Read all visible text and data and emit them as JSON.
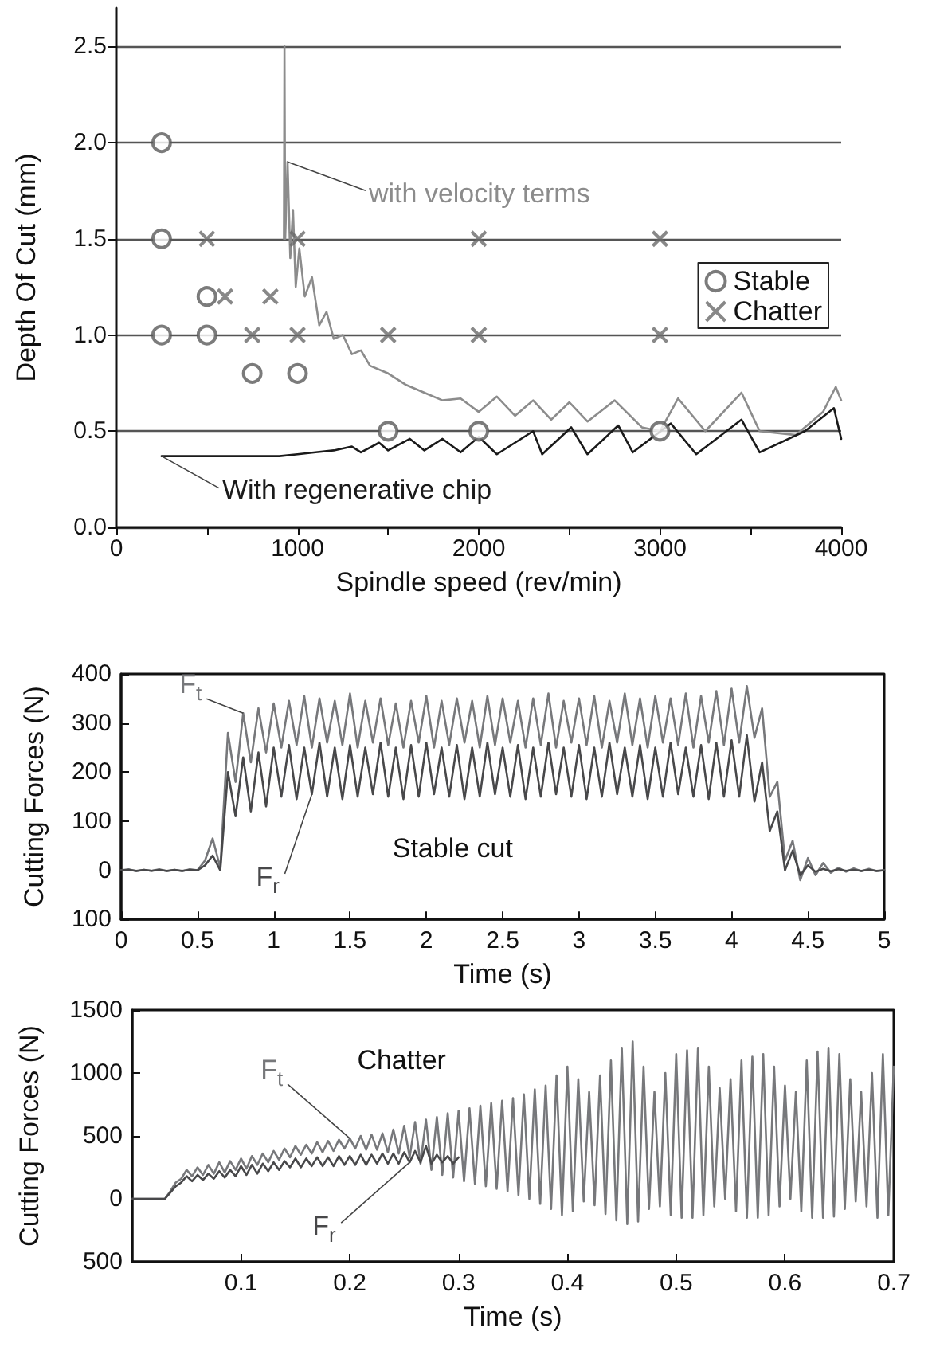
{
  "chart_data": [
    {
      "type": "line",
      "xlabel": "Spindle speed (rev/min)",
      "ylabel": "Depth Of Cut (mm)",
      "xlim": [
        0,
        4000
      ],
      "xticks": [
        0,
        {
          "value": 500,
          "label": null
        },
        1000,
        {
          "value": 1500,
          "label": null
        },
        2000,
        {
          "value": 2500,
          "label": null
        },
        3000,
        {
          "value": 3500,
          "label": null
        },
        4000
      ],
      "ylim": [
        0,
        2.7
      ],
      "yticks": [
        {
          "value": 0,
          "label": "0.0"
        },
        0.5,
        {
          "value": 1,
          "label": "1.0"
        },
        1.5,
        {
          "value": 2,
          "label": "2.0"
        },
        2.5
      ],
      "grid": "y",
      "legend": "right",
      "series": [
        {
          "name": "with velocity terms",
          "type": "line",
          "color": "#8c8c8c",
          "x": [
            925,
            928,
            932,
            945,
            960,
            975,
            990,
            1010,
            1040,
            1080,
            1120,
            1160,
            1200,
            1250,
            1300,
            1350,
            1400,
            1500,
            1600,
            1700,
            1800,
            1900,
            2000,
            2100,
            2200,
            2300,
            2400,
            2500,
            2600,
            2750,
            2900,
            3000,
            3100,
            3250,
            3450,
            3550,
            3750,
            3900,
            3970,
            4000
          ],
          "values": [
            1.5,
            2.5,
            1.5,
            1.9,
            1.4,
            1.65,
            1.25,
            1.45,
            1.2,
            1.3,
            1.05,
            1.12,
            0.98,
            1.0,
            0.9,
            0.92,
            0.84,
            0.8,
            0.74,
            0.7,
            0.66,
            0.67,
            0.6,
            0.68,
            0.58,
            0.66,
            0.56,
            0.65,
            0.55,
            0.66,
            0.52,
            0.5,
            0.67,
            0.5,
            0.7,
            0.5,
            0.48,
            0.6,
            0.73,
            0.66
          ]
        },
        {
          "name": "With regenerative chip",
          "type": "line",
          "color": "#1a1a1a",
          "x": [
            250,
            900,
            1000,
            1100,
            1200,
            1300,
            1350,
            1450,
            1500,
            1620,
            1700,
            1800,
            1900,
            2000,
            2100,
            2300,
            2350,
            2510,
            2600,
            2770,
            2850,
            3060,
            3200,
            3450,
            3550,
            3800,
            3960,
            4000
          ],
          "values": [
            0.37,
            0.37,
            0.38,
            0.39,
            0.4,
            0.42,
            0.39,
            0.44,
            0.4,
            0.46,
            0.4,
            0.46,
            0.39,
            0.47,
            0.38,
            0.5,
            0.38,
            0.52,
            0.38,
            0.53,
            0.39,
            0.54,
            0.38,
            0.56,
            0.39,
            0.5,
            0.62,
            0.46
          ]
        },
        {
          "name": "Stable",
          "type": "scatter",
          "marker": "circle",
          "color": "#5a5a5a",
          "x": [
            250,
            250,
            250,
            500,
            500,
            750,
            1000,
            1500,
            2000,
            3000
          ],
          "values": [
            2.0,
            1.5,
            1.0,
            1.2,
            1.0,
            0.8,
            0.8,
            0.5,
            0.5,
            0.5
          ]
        },
        {
          "name": "Chatter",
          "type": "scatter",
          "marker": "cross",
          "color": "#6a6a6a",
          "x": [
            500,
            600,
            750,
            850,
            1000,
            1000,
            1500,
            2000,
            2000,
            3000,
            3000
          ],
          "values": [
            1.5,
            1.2,
            1.0,
            1.2,
            1.5,
            1.0,
            1.0,
            1.5,
            1.0,
            1.5,
            1.0
          ]
        }
      ]
    },
    {
      "type": "line",
      "xlabel": "Time (s)",
      "ylabel": "Cutting Forces (N)",
      "annotations": [
        "Stable cut"
      ],
      "xlim": [
        0,
        5
      ],
      "xticks": [
        0,
        0.5,
        1,
        1.5,
        2,
        2.5,
        3,
        3.5,
        4,
        4.5,
        5
      ],
      "ylim": [
        -100,
        400
      ],
      "yticks": [
        {
          "value": -100,
          "label": "100"
        },
        0,
        100,
        200,
        300,
        400
      ],
      "series": [
        {
          "name": "F$_{t}$",
          "color": "#77787b",
          "x": [
            0,
            0.05,
            0.1,
            0.15,
            0.2,
            0.25,
            0.3,
            0.35,
            0.4,
            0.45,
            0.5,
            0.55,
            0.6,
            0.65,
            0.7,
            0.75,
            0.8,
            0.85,
            0.9,
            0.95,
            1,
            1.05,
            1.1,
            1.15,
            1.2,
            1.25,
            1.3,
            1.35,
            1.4,
            1.45,
            1.5,
            1.55,
            1.6,
            1.65,
            1.7,
            1.75,
            1.8,
            1.85,
            1.9,
            1.95,
            2,
            2.05,
            2.1,
            2.15,
            2.2,
            2.25,
            2.3,
            2.35,
            2.4,
            2.45,
            2.5,
            2.55,
            2.6,
            2.65,
            2.7,
            2.75,
            2.8,
            2.85,
            2.9,
            2.95,
            3,
            3.05,
            3.1,
            3.15,
            3.2,
            3.25,
            3.3,
            3.35,
            3.4,
            3.45,
            3.5,
            3.55,
            3.6,
            3.65,
            3.7,
            3.75,
            3.8,
            3.85,
            3.9,
            3.95,
            4,
            4.05,
            4.1,
            4.15,
            4.2,
            4.25,
            4.3,
            4.35,
            4.4,
            4.45,
            4.5,
            4.55,
            4.6,
            4.65,
            4.7,
            4.75,
            4.8,
            4.85,
            4.9,
            4.95,
            5
          ],
          "values": [
            0,
            2,
            -2,
            1,
            -1,
            2,
            -2,
            1,
            -2,
            2,
            0,
            20,
            65,
            5,
            280,
            180,
            320,
            220,
            330,
            240,
            340,
            250,
            345,
            255,
            355,
            250,
            350,
            260,
            345,
            255,
            360,
            250,
            345,
            260,
            350,
            255,
            340,
            250,
            345,
            260,
            355,
            250,
            345,
            255,
            350,
            260,
            345,
            250,
            355,
            255,
            350,
            260,
            345,
            250,
            350,
            255,
            360,
            250,
            345,
            260,
            350,
            255,
            355,
            250,
            345,
            260,
            360,
            255,
            350,
            250,
            355,
            260,
            350,
            255,
            360,
            250,
            355,
            260,
            365,
            255,
            370,
            260,
            375,
            270,
            330,
            150,
            180,
            20,
            60,
            -20,
            25,
            -10,
            15,
            -5,
            5,
            -3,
            4,
            -2,
            3,
            -2,
            0
          ]
        },
        {
          "name": "F$_{r}$",
          "color": "#48484a",
          "x": [
            0,
            0.05,
            0.1,
            0.15,
            0.2,
            0.25,
            0.3,
            0.35,
            0.4,
            0.45,
            0.5,
            0.55,
            0.6,
            0.65,
            0.7,
            0.75,
            0.8,
            0.85,
            0.9,
            0.95,
            1,
            1.05,
            1.1,
            1.15,
            1.2,
            1.25,
            1.3,
            1.35,
            1.4,
            1.45,
            1.5,
            1.55,
            1.6,
            1.65,
            1.7,
            1.75,
            1.8,
            1.85,
            1.9,
            1.95,
            2,
            2.05,
            2.1,
            2.15,
            2.2,
            2.25,
            2.3,
            2.35,
            2.4,
            2.45,
            2.5,
            2.55,
            2.6,
            2.65,
            2.7,
            2.75,
            2.8,
            2.85,
            2.9,
            2.95,
            3,
            3.05,
            3.1,
            3.15,
            3.2,
            3.25,
            3.3,
            3.35,
            3.4,
            3.45,
            3.5,
            3.55,
            3.6,
            3.65,
            3.7,
            3.75,
            3.8,
            3.85,
            3.9,
            3.95,
            4,
            4.05,
            4.1,
            4.15,
            4.2,
            4.25,
            4.3,
            4.35,
            4.4,
            4.45,
            4.5,
            4.55,
            4.6,
            4.65,
            4.7,
            4.75,
            4.8,
            4.85,
            4.9,
            4.95,
            5
          ],
          "values": [
            0,
            1,
            -1,
            1,
            -1,
            1,
            -1,
            1,
            -1,
            1,
            0,
            10,
            30,
            0,
            200,
            110,
            230,
            120,
            240,
            130,
            250,
            150,
            255,
            145,
            250,
            155,
            260,
            150,
            250,
            145,
            255,
            150,
            250,
            155,
            260,
            150,
            250,
            145,
            255,
            150,
            260,
            155,
            250,
            150,
            255,
            145,
            250,
            150,
            260,
            155,
            250,
            150,
            255,
            145,
            250,
            150,
            260,
            155,
            250,
            150,
            255,
            145,
            250,
            150,
            260,
            155,
            250,
            150,
            255,
            145,
            250,
            150,
            260,
            155,
            250,
            150,
            255,
            145,
            260,
            150,
            265,
            150,
            275,
            140,
            220,
            80,
            120,
            0,
            40,
            -10,
            10,
            -3,
            3,
            -2,
            2,
            -1,
            1,
            -1,
            1,
            -1,
            0
          ]
        }
      ]
    },
    {
      "type": "line",
      "xlabel": "Time (s)",
      "ylabel": "Cutting Forces (N)",
      "annotations": [
        "Chatter"
      ],
      "xlim": [
        0,
        0.7
      ],
      "xticks": [
        0.1,
        0.2,
        0.3,
        0.4,
        0.5,
        0.6,
        0.7
      ],
      "ylim": [
        -500,
        1500
      ],
      "yticks": [
        {
          "value": -500,
          "label": "500"
        },
        0,
        500,
        1000,
        1500
      ],
      "series": [
        {
          "name": "F$_{t}$",
          "color": "#77787b",
          "x": [
            0,
            0.005,
            0.01,
            0.015,
            0.02,
            0.025,
            0.03,
            0.035,
            0.04,
            0.045,
            0.05,
            0.055,
            0.06,
            0.065,
            0.07,
            0.075,
            0.08,
            0.085,
            0.09,
            0.095,
            0.1,
            0.105,
            0.11,
            0.115,
            0.12,
            0.125,
            0.13,
            0.135,
            0.14,
            0.145,
            0.15,
            0.155,
            0.16,
            0.165,
            0.17,
            0.175,
            0.18,
            0.185,
            0.19,
            0.195,
            0.2,
            0.205,
            0.21,
            0.215,
            0.22,
            0.225,
            0.23,
            0.235,
            0.24,
            0.245,
            0.25,
            0.255,
            0.26,
            0.265,
            0.27,
            0.275,
            0.28,
            0.285,
            0.29,
            0.295,
            0.3,
            0.305,
            0.31,
            0.315,
            0.32,
            0.325,
            0.33,
            0.335,
            0.34,
            0.345,
            0.35,
            0.355,
            0.36,
            0.365,
            0.37,
            0.375,
            0.38,
            0.385,
            0.39,
            0.395,
            0.4,
            0.405,
            0.41,
            0.415,
            0.42,
            0.425,
            0.43,
            0.435,
            0.44,
            0.445,
            0.45,
            0.455,
            0.46,
            0.465,
            0.47,
            0.475,
            0.48,
            0.485,
            0.49,
            0.495,
            0.5,
            0.505,
            0.51,
            0.515,
            0.52,
            0.525,
            0.53,
            0.535,
            0.54,
            0.545,
            0.55,
            0.555,
            0.56,
            0.565,
            0.57,
            0.575,
            0.58,
            0.585,
            0.59,
            0.595,
            0.6,
            0.605,
            0.61,
            0.615,
            0.62,
            0.625,
            0.63,
            0.635,
            0.64,
            0.645,
            0.65,
            0.655,
            0.66,
            0.665,
            0.67,
            0.675,
            0.68,
            0.685,
            0.69,
            0.695,
            0.7
          ],
          "values": [
            0,
            0,
            0,
            0,
            0,
            0,
            0,
            60,
            130,
            160,
            230,
            180,
            250,
            190,
            270,
            200,
            290,
            210,
            300,
            230,
            320,
            240,
            340,
            270,
            360,
            290,
            380,
            310,
            400,
            330,
            420,
            350,
            430,
            360,
            450,
            370,
            460,
            380,
            470,
            400,
            480,
            400,
            500,
            390,
            510,
            390,
            520,
            370,
            550,
            360,
            580,
            330,
            610,
            280,
            630,
            230,
            650,
            190,
            680,
            170,
            700,
            140,
            720,
            120,
            740,
            100,
            760,
            80,
            780,
            60,
            800,
            30,
            830,
            0,
            870,
            -40,
            900,
            -80,
            980,
            -130,
            1050,
            -100,
            950,
            -20,
            850,
            -50,
            980,
            -120,
            1100,
            -170,
            1200,
            -200,
            1250,
            -180,
            1050,
            -80,
            850,
            -60,
            1000,
            -130,
            1150,
            -150,
            1180,
            -150,
            1200,
            -130,
            1050,
            -60,
            880,
            0,
            950,
            -100,
            1100,
            -150,
            1130,
            -150,
            1150,
            -130,
            1050,
            -60,
            900,
            0,
            850,
            -100,
            1100,
            -150,
            1170,
            -150,
            1200,
            -140,
            1150,
            -80,
            950,
            -20,
            850,
            -60,
            1000,
            -150,
            1150,
            -130,
            1050
          ]
        },
        {
          "name": "F$_{r}$",
          "color": "#48484a",
          "x": [
            0,
            0.005,
            0.01,
            0.015,
            0.02,
            0.025,
            0.03,
            0.035,
            0.04,
            0.045,
            0.05,
            0.055,
            0.06,
            0.065,
            0.07,
            0.075,
            0.08,
            0.085,
            0.09,
            0.095,
            0.1,
            0.105,
            0.11,
            0.115,
            0.12,
            0.125,
            0.13,
            0.135,
            0.14,
            0.145,
            0.15,
            0.155,
            0.16,
            0.165,
            0.17,
            0.175,
            0.18,
            0.185,
            0.19,
            0.195,
            0.2,
            0.205,
            0.21,
            0.215,
            0.22,
            0.225,
            0.23,
            0.235,
            0.24,
            0.245,
            0.25,
            0.255,
            0.26,
            0.265,
            0.27,
            0.275,
            0.28,
            0.285,
            0.29,
            0.295,
            0.3
          ],
          "values": [
            0,
            0,
            0,
            0,
            0,
            0,
            0,
            50,
            100,
            130,
            180,
            140,
            190,
            150,
            200,
            160,
            220,
            170,
            230,
            180,
            260,
            190,
            270,
            200,
            280,
            220,
            290,
            230,
            300,
            250,
            320,
            250,
            320,
            260,
            330,
            260,
            330,
            260,
            340,
            270,
            340,
            270,
            350,
            270,
            350,
            280,
            360,
            280,
            360,
            280,
            370,
            290,
            380,
            290,
            420,
            280,
            350,
            290,
            340,
            280,
            330
          ]
        }
      ]
    }
  ]
}
